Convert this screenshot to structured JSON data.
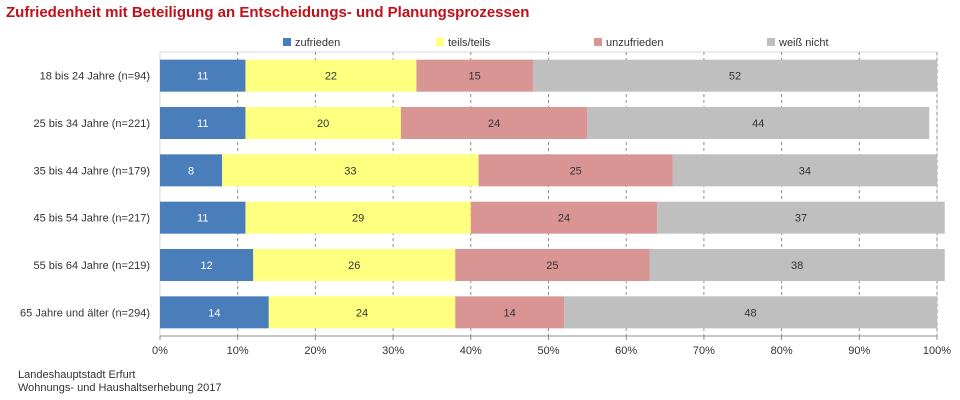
{
  "chart_data": {
    "type": "bar",
    "orientation": "horizontal",
    "stacked": true,
    "title": "Zufriedenheit mit Beteiligung an Entscheidungs- und Planungsprozessen",
    "categories": [
      "18 bis 24 Jahre (n=94)",
      "25 bis 34 Jahre (n=221)",
      "35 bis 44 Jahre (n=179)",
      "45 bis 54 Jahre (n=217)",
      "55 bis 64 Jahre (n=219)",
      "65 Jahre und älter (n=294)"
    ],
    "series": [
      {
        "name": "zufrieden",
        "color": "#4a7ebb",
        "values": [
          11,
          11,
          8,
          11,
          12,
          14
        ]
      },
      {
        "name": "teils/teils",
        "color": "#ffff80",
        "values": [
          22,
          20,
          33,
          29,
          26,
          24
        ]
      },
      {
        "name": "unzufrieden",
        "color": "#d99594",
        "values": [
          15,
          24,
          25,
          24,
          25,
          14
        ]
      },
      {
        "name": "weiß nicht",
        "color": "#bfbfbf",
        "values": [
          52,
          44,
          34,
          37,
          38,
          48
        ]
      }
    ],
    "xlim": [
      0,
      100
    ],
    "xticks": [
      "0%",
      "10%",
      "20%",
      "30%",
      "40%",
      "50%",
      "60%",
      "70%",
      "80%",
      "90%",
      "100%"
    ],
    "grid": "vertical dashed",
    "legend": "top"
  },
  "source": {
    "line1": "Landeshauptstadt Erfurt",
    "line2": "Wohnungs- und Haushaltserhebung 2017"
  }
}
